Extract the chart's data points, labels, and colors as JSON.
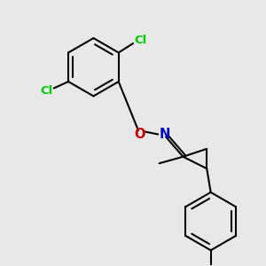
{
  "background_color": "#e8e8e8",
  "atom_colors": {
    "N": "#0000cc",
    "O": "#cc0000",
    "Cl": "#00cc00"
  },
  "line_color": "#000000",
  "line_width": 1.5,
  "font_size": 9.5
}
